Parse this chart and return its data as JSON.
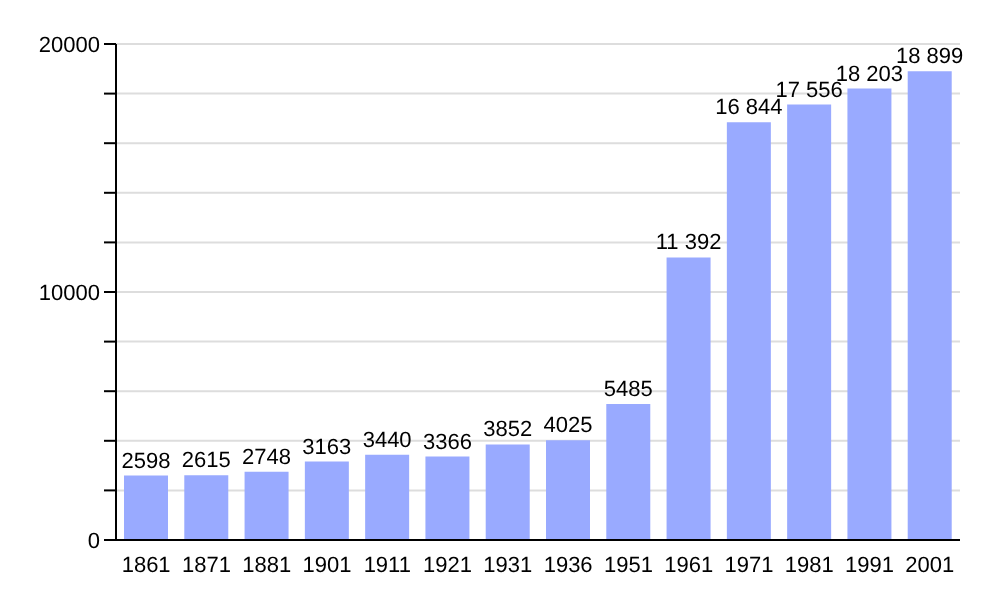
{
  "chart_data": {
    "type": "bar",
    "categories": [
      "1861",
      "1871",
      "1881",
      "1901",
      "1911",
      "1921",
      "1931",
      "1936",
      "1951",
      "1961",
      "1971",
      "1981",
      "1991",
      "2001"
    ],
    "values": [
      2598,
      2615,
      2748,
      3163,
      3440,
      3366,
      3852,
      4025,
      5485,
      11392,
      16844,
      17556,
      18203,
      18899
    ],
    "value_labels": [
      "2598",
      "2615",
      "2748",
      "3163",
      "3440",
      "3366",
      "3852",
      "4025",
      "5485",
      "11 392",
      "16 844",
      "17 556",
      "18 203",
      "18 899"
    ],
    "color": "#99aaff",
    "ylim": [
      0,
      20000
    ],
    "yticks": [
      0,
      {
        "value": 2000,
        "label": null
      },
      {
        "value": 4000,
        "label": null
      },
      {
        "value": 6000,
        "label": null
      },
      {
        "value": 8000,
        "label": null
      },
      10000,
      {
        "value": 12000,
        "label": null
      },
      {
        "value": 14000,
        "label": null
      },
      {
        "value": 16000,
        "label": null
      },
      {
        "value": 18000,
        "label": null
      },
      20000
    ],
    "grid": "y"
  }
}
